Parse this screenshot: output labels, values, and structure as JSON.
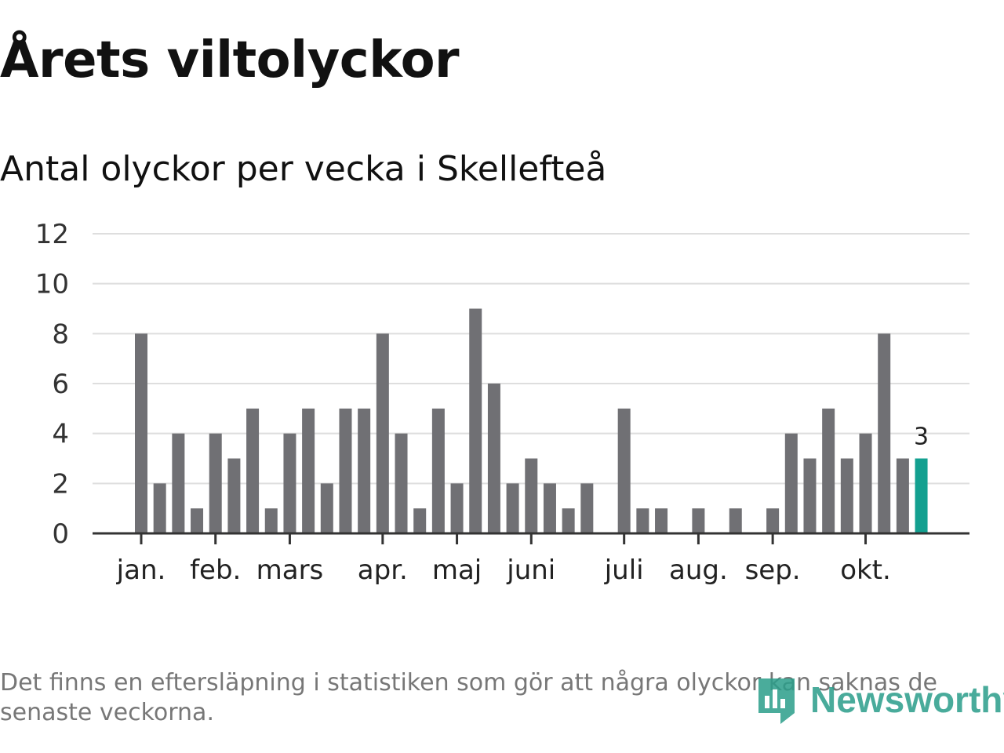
{
  "header": {
    "title": "Årets viltolyckor",
    "subtitle": "Antal olyckor per vecka i Skellefteå"
  },
  "chart_data": {
    "type": "bar",
    "title": "Årets viltolyckor",
    "subtitle": "Antal olyckor per vecka i Skellefteå",
    "xlabel": "",
    "ylabel": "",
    "ylim": [
      0,
      12
    ],
    "yticks": [
      0,
      2,
      4,
      6,
      8,
      10,
      12
    ],
    "grid": true,
    "values": [
      8,
      2,
      4,
      1,
      4,
      3,
      5,
      1,
      4,
      5,
      2,
      5,
      5,
      8,
      4,
      1,
      5,
      2,
      9,
      6,
      2,
      3,
      2,
      1,
      2,
      0,
      5,
      1,
      1,
      0,
      1,
      0,
      1,
      0,
      1,
      4,
      3,
      5,
      3,
      4,
      8,
      3,
      3
    ],
    "highlight_index": 42,
    "highlight_label": "3",
    "month_labels": [
      {
        "label": "jan.",
        "week": 0
      },
      {
        "label": "feb.",
        "week": 4
      },
      {
        "label": "mars",
        "week": 8
      },
      {
        "label": "apr.",
        "week": 13
      },
      {
        "label": "maj",
        "week": 17
      },
      {
        "label": "juni",
        "week": 21
      },
      {
        "label": "juli",
        "week": 26
      },
      {
        "label": "aug.",
        "week": 30
      },
      {
        "label": "sep.",
        "week": 34
      },
      {
        "label": "okt.",
        "week": 39
      }
    ],
    "colors": {
      "bar": "#707074",
      "highlight": "#13a090",
      "grid": "#dedede",
      "axis": "#333333"
    }
  },
  "footer": {
    "note": "Det finns en eftersläpning i statistiken som gör att några olyckor kan saknas de senaste veckorna.",
    "brand": "Newsworthy"
  }
}
